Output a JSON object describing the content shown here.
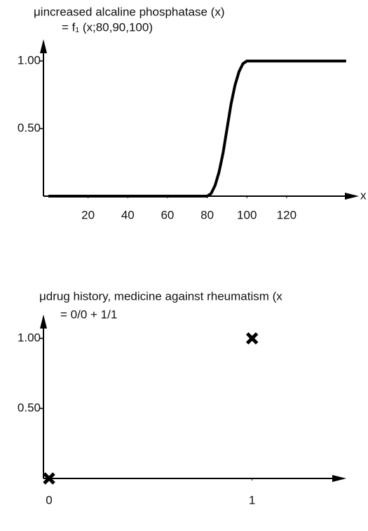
{
  "chart_data": [
    {
      "type": "line",
      "title": "μincreased alcaline phosphatase (x)",
      "subtitle": "= f₁ (x;80,90,100)",
      "xlabel": "x",
      "x": [
        0,
        80,
        82,
        84,
        86,
        88,
        90,
        92,
        94,
        96,
        98,
        100,
        150
      ],
      "values": [
        0,
        0,
        0.02,
        0.08,
        0.18,
        0.32,
        0.5,
        0.68,
        0.82,
        0.92,
        0.98,
        1,
        1
      ],
      "color": "#000000",
      "xlim": [
        0,
        155
      ],
      "ylim": [
        0,
        1.13
      ],
      "xticks": [
        20,
        40,
        60,
        80,
        100,
        120
      ],
      "yticks": [
        {
          "value": 0.5,
          "label": "0.50"
        },
        {
          "value": 1,
          "label": "1.00"
        }
      ]
    },
    {
      "type": "scatter",
      "title": "μdrug history, medicine against rheumatism (x",
      "subtitle": "= 0/0 + 1/1",
      "x": [
        0,
        1
      ],
      "values": [
        0,
        1
      ],
      "color": "#000000",
      "xlim": [
        0,
        1.45
      ],
      "ylim": [
        0,
        1.14
      ],
      "xticks": [
        0,
        1
      ],
      "yticks": [
        {
          "value": 0.5,
          "label": "0.50"
        },
        {
          "value": 1,
          "label": "1.00"
        }
      ]
    }
  ]
}
